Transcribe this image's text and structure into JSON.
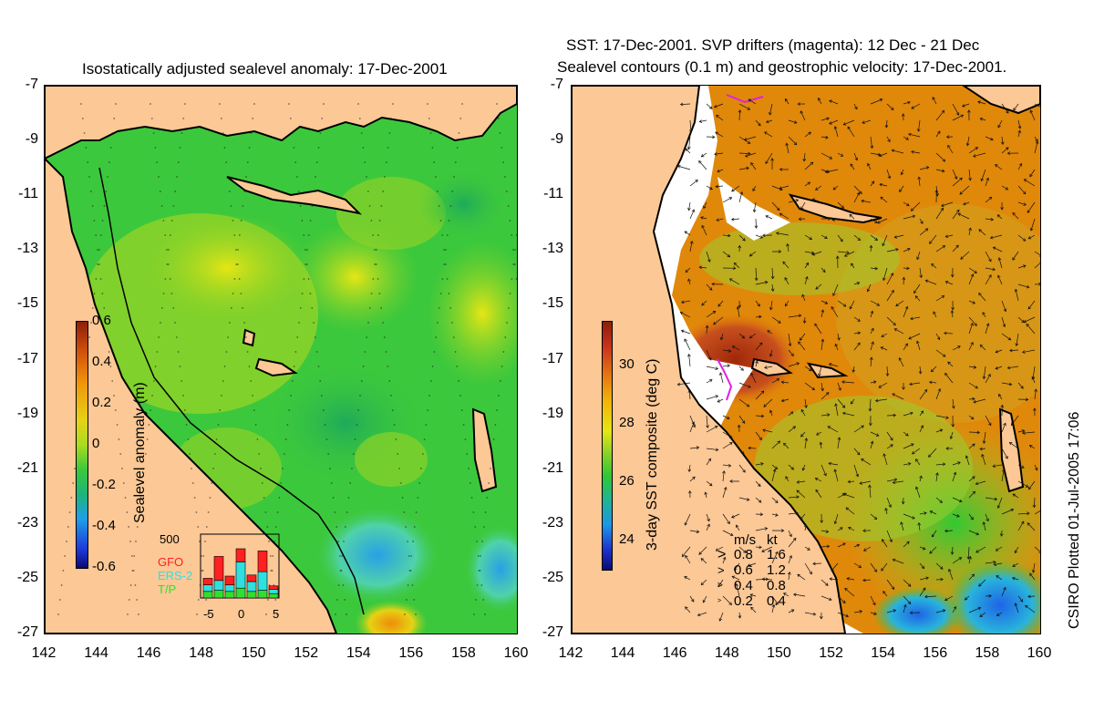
{
  "left_panel": {
    "title": "Isostatically adjusted sealevel anomaly: 17-Dec-2001",
    "y_ticks": [
      "-7",
      "-9",
      "-11",
      "-13",
      "-15",
      "-17",
      "-19",
      "-21",
      "-23",
      "-25",
      "-27"
    ],
    "x_ticks": [
      "142",
      "144",
      "146",
      "148",
      "150",
      "152",
      "154",
      "156",
      "158",
      "160"
    ],
    "colorbar": {
      "title": "Sealevel anomaly (m)",
      "labels": [
        "0.6",
        "0.4",
        "0.2",
        "0",
        "-0.2",
        "-0.4",
        "-0.6"
      ],
      "range": [
        -0.6,
        0.6
      ]
    },
    "inset": {
      "ymax_label": "500",
      "legend": [
        "GFO",
        "ERS-2",
        "T/P"
      ],
      "legend_colors": [
        "#ff2020",
        "#30e0e0",
        "#30e030"
      ],
      "x_ticks": [
        "-5",
        "0",
        "5"
      ],
      "bars": [
        {
          "tp": 60,
          "ers": 60,
          "gfo": 60
        },
        {
          "tp": 70,
          "ers": 90,
          "gfo": 220
        },
        {
          "tp": 60,
          "ers": 60,
          "gfo": 80
        },
        {
          "tp": 90,
          "ers": 240,
          "gfo": 120
        },
        {
          "tp": 60,
          "ers": 90,
          "gfo": 60
        },
        {
          "tp": 70,
          "ers": 170,
          "gfo": 190
        },
        {
          "tp": 40,
          "ers": 40,
          "gfo": 30
        }
      ]
    }
  },
  "right_panel": {
    "title_line1": "SST: 17-Dec-2001. SVP drifters (magenta): 12 Dec - 21 Dec",
    "title_line2": "Sealevel contours (0.1 m) and geostrophic velocity: 17-Dec-2001.",
    "y_ticks": [
      "-7",
      "-9",
      "-11",
      "-13",
      "-15",
      "-17",
      "-19",
      "-21",
      "-23",
      "-25",
      "-27"
    ],
    "x_ticks": [
      "142",
      "144",
      "146",
      "148",
      "150",
      "152",
      "154",
      "156",
      "158",
      "160"
    ],
    "colorbar": {
      "title": "3-day SST composite (deg C)",
      "labels": [
        "30",
        "28",
        "26",
        "24"
      ],
      "range": [
        23,
        31.5
      ]
    },
    "velocity_legend": {
      "header_ms": "m/s",
      "header_kt": "kt",
      "rows": [
        {
          "ms": "0.8",
          "kt": "1.6"
        },
        {
          "ms": "0.6",
          "kt": "1.2"
        },
        {
          "ms": "0.4",
          "kt": "0.8"
        },
        {
          "ms": "0.2",
          "kt": "0.4"
        }
      ]
    }
  },
  "credit": "CSIRO Plotted 01-Jul-2005 17:06",
  "colors": {
    "land": "#fbc896",
    "sla_base": "#3cc83c",
    "sst_warm": "#e0780a",
    "sst_hot": "#b43214",
    "sst_mid": "#50d232"
  }
}
